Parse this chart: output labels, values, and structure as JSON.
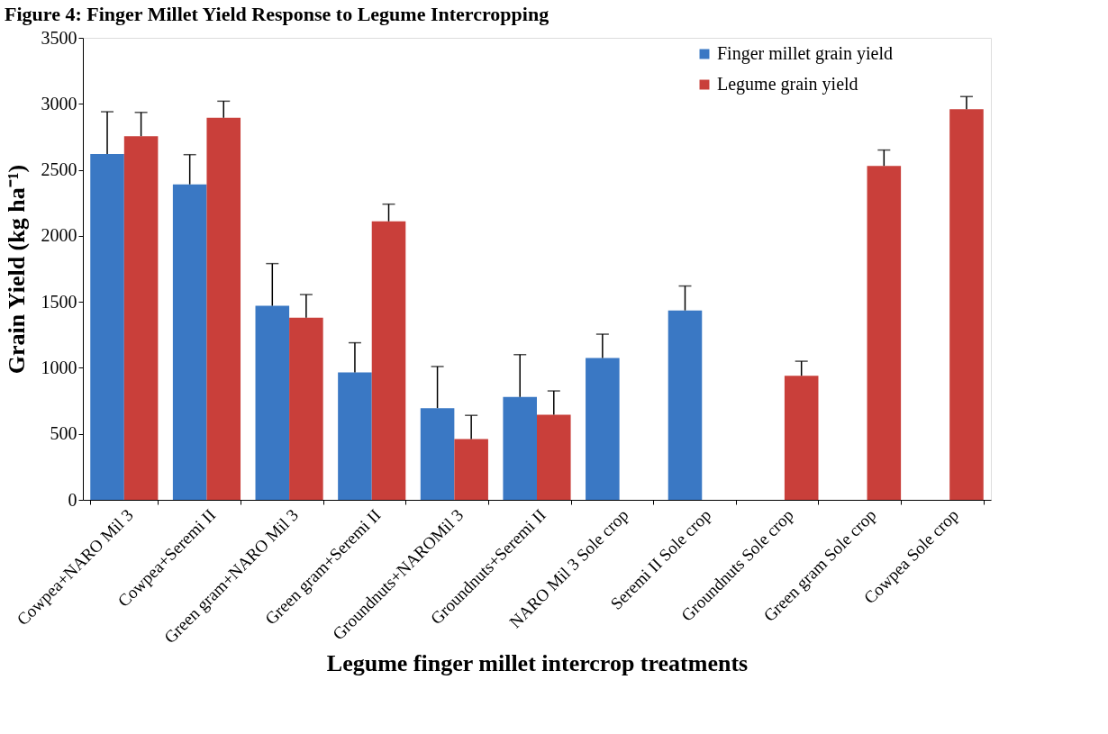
{
  "chart_data": {
    "type": "bar",
    "title": "Figure 4: Finger Millet Yield Response to Legume Intercropping",
    "xlabel": "Legume finger millet intercrop treatments",
    "ylabel": "Grain Yield (kg ha⁻¹)",
    "categories": [
      "Cowpea+NARO Mil 3",
      "Cowpea+Seremi II",
      "Green gram+NARO Mil 3",
      "Green gram+Seremi II",
      "Groundnuts+NAROMil 3",
      "Groundnuts+Seremi II",
      "NARO Mil 3 Sole crop",
      "Seremi II Sole crop",
      "Groundnuts Sole crop",
      "Green gram Sole crop",
      "Cowpea Sole crop"
    ],
    "series": [
      {
        "name": "Finger millet grain yield",
        "color": "#3a78c4",
        "values": [
          2620,
          2390,
          1470,
          965,
          695,
          780,
          1075,
          1435,
          null,
          null,
          null
        ],
        "errors": [
          320,
          225,
          320,
          225,
          315,
          320,
          180,
          185,
          null,
          null,
          null
        ]
      },
      {
        "name": "Legume grain yield",
        "color": "#c93f3a",
        "values": [
          2755,
          2895,
          1380,
          2110,
          460,
          645,
          null,
          null,
          940,
          2530,
          2960
        ],
        "errors": [
          180,
          125,
          175,
          130,
          180,
          180,
          null,
          null,
          110,
          120,
          95
        ]
      }
    ],
    "ylim": [
      0,
      3500
    ],
    "yticks": [
      0,
      500,
      1000,
      1500,
      2000,
      2500,
      3000,
      3500
    ],
    "grid": false,
    "legend": "top right"
  }
}
